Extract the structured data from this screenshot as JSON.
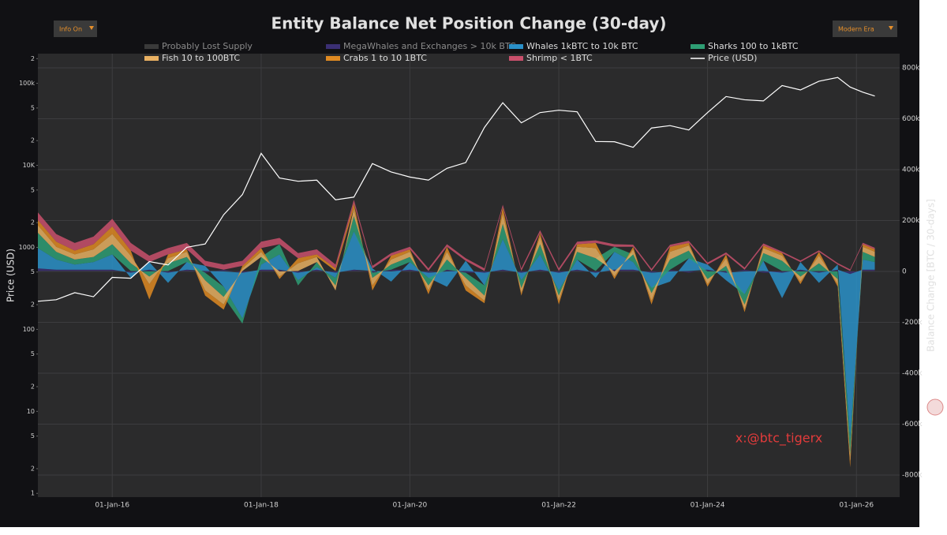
{
  "controls": {
    "info": "Info On",
    "era": "Modern Era"
  },
  "watermark": "x:@btc_tigerx",
  "chart_data": {
    "type": "area",
    "title": "Entity Balance Net Position Change (30-day)",
    "y_label": "Price (USD)",
    "y2_label": "Balance Change [BTC / 30-days]",
    "ylog": true,
    "grid": true,
    "x": [
      "2015-01-01",
      "2015-04-01",
      "2015-07-01",
      "2015-10-01",
      "2016-01-01",
      "2016-04-01",
      "2016-07-01",
      "2016-10-01",
      "2017-01-01",
      "2017-04-01",
      "2017-07-01",
      "2017-10-01",
      "2018-01-01",
      "2018-04-01",
      "2018-07-01",
      "2018-10-01",
      "2019-01-01",
      "2019-04-01",
      "2019-07-01",
      "2019-10-01",
      "2020-01-01",
      "2020-04-01",
      "2020-07-01",
      "2020-10-01",
      "2021-01-01",
      "2021-04-01",
      "2021-07-01",
      "2021-10-01",
      "2022-01-01",
      "2022-04-01",
      "2022-07-01",
      "2022-10-01",
      "2023-01-01",
      "2023-04-01",
      "2023-07-01",
      "2023-10-01",
      "2024-01-01",
      "2024-04-01",
      "2024-07-01",
      "2024-10-01",
      "2025-01-01",
      "2025-04-01",
      "2025-07-01",
      "2025-10-01",
      "2025-12-01",
      "2026-02-01",
      "2026-04-01"
    ],
    "xlim": [
      "2015-01-01",
      "2026-08-01"
    ],
    "xticks": [
      {
        "value": "2016-01-01",
        "label": "01-Jan-16"
      },
      {
        "value": "2018-01-01",
        "label": "01-Jan-18"
      },
      {
        "value": "2020-01-01",
        "label": "01-Jan-20"
      },
      {
        "value": "2022-01-01",
        "label": "01-Jan-22"
      },
      {
        "value": "2024-01-01",
        "label": "01-Jan-24"
      },
      {
        "value": "2026-01-01",
        "label": "01-Jan-26"
      }
    ],
    "ylim": [
      0.9,
      230000
    ],
    "yticks": [
      1,
      2,
      5,
      10,
      {
        "value": 20,
        "label": "2"
      },
      {
        "value": 50,
        "label": "5"
      },
      100,
      {
        "value": 200,
        "label": "2"
      },
      {
        "value": 500,
        "label": "5"
      },
      1000,
      {
        "value": 2000,
        "label": "2"
      },
      {
        "value": 5000,
        "label": "5"
      },
      {
        "value": 10000,
        "label": "10K"
      },
      {
        "value": 20000,
        "label": "2"
      },
      {
        "value": 50000,
        "label": "5"
      },
      {
        "value": 100000,
        "label": "100k"
      },
      {
        "value": 200000,
        "label": "2"
      }
    ],
    "y2lim": [
      -887000,
      856000
    ],
    "y2ticks": [
      {
        "value": -800000,
        "label": "-800k"
      },
      {
        "value": -600000,
        "label": "-600k"
      },
      {
        "value": -400000,
        "label": "-400k"
      },
      {
        "value": -200000,
        "label": "-200k"
      },
      0,
      {
        "value": 200000,
        "label": "200k"
      },
      {
        "value": 400000,
        "label": "400k"
      },
      {
        "value": 600000,
        "label": "600k"
      },
      {
        "value": 800000,
        "label": "800k"
      }
    ],
    "series": [
      {
        "name": "Probably Lost Supply",
        "color": "#3a3a3a",
        "axis": "y2",
        "values": [
          2000,
          2000,
          2000,
          2000,
          2000,
          2000,
          2000,
          2000,
          2000,
          2000,
          2000,
          2000,
          2000,
          2000,
          2000,
          2000,
          2000,
          2000,
          2000,
          2000,
          2000,
          2000,
          2000,
          2000,
          2000,
          2000,
          2000,
          2000,
          2000,
          2000,
          2000,
          2000,
          2000,
          2000,
          2000,
          2000,
          2000,
          2000,
          2000,
          2000,
          2000,
          2000,
          2000,
          2000,
          2000,
          2000,
          2000
        ]
      },
      {
        "name": "MegaWhales and Exchanges > 10k BTC",
        "color": "#3b2f74",
        "axis": "y2",
        "values": [
          10000,
          5000,
          5000,
          5000,
          5000,
          -5000,
          5000,
          -5000,
          5000,
          -5000,
          5000,
          -5000,
          5000,
          5000,
          -5000,
          5000,
          -5000,
          5000,
          -5000,
          5000,
          5000,
          -5000,
          5000,
          -5000,
          -5000,
          5000,
          -5000,
          5000,
          -5000,
          5000,
          -5000,
          5000,
          5000,
          -5000,
          5000,
          -5000,
          5000,
          -5000,
          5000,
          -5000,
          -5000,
          5000,
          -5000,
          5000,
          -10000,
          5000,
          5000
        ]
      },
      {
        "name": "Whales 1kBTC to 10k BTC",
        "color": "#2a90c8",
        "axis": "y2",
        "values": [
          80000,
          40000,
          20000,
          30000,
          60000,
          -20000,
          30000,
          -40000,
          30000,
          20000,
          -60000,
          -180000,
          20000,
          60000,
          -30000,
          10000,
          -20000,
          150000,
          10000,
          -40000,
          30000,
          -20000,
          -60000,
          40000,
          -50000,
          120000,
          -30000,
          60000,
          -70000,
          40000,
          -20000,
          70000,
          30000,
          -60000,
          -40000,
          50000,
          20000,
          -30000,
          -90000,
          40000,
          -100000,
          30000,
          -40000,
          20000,
          -650000,
          40000,
          30000
        ]
      },
      {
        "name": "Sharks 100 to 1kBTC",
        "color": "#2e9e74",
        "axis": "y2",
        "values": [
          60000,
          30000,
          20000,
          20000,
          40000,
          30000,
          -20000,
          30000,
          20000,
          -30000,
          -40000,
          -20000,
          30000,
          40000,
          -20000,
          20000,
          -30000,
          60000,
          -20000,
          20000,
          20000,
          -30000,
          40000,
          -20000,
          -40000,
          60000,
          -30000,
          40000,
          -20000,
          30000,
          50000,
          20000,
          30000,
          -20000,
          40000,
          30000,
          -30000,
          20000,
          -40000,
          30000,
          40000,
          -20000,
          30000,
          -30000,
          -60000,
          30000,
          20000
        ]
      },
      {
        "name": "Fish 10 to 100BTC",
        "color": "#e8b062",
        "axis": "y2",
        "values": [
          30000,
          20000,
          20000,
          30000,
          40000,
          30000,
          -30000,
          20000,
          20000,
          -40000,
          -30000,
          10000,
          20000,
          -20000,
          30000,
          20000,
          -20000,
          30000,
          -30000,
          20000,
          20000,
          -20000,
          30000,
          -30000,
          -20000,
          40000,
          -20000,
          30000,
          -20000,
          20000,
          40000,
          -20000,
          20000,
          -30000,
          30000,
          20000,
          -20000,
          30000,
          -20000,
          20000,
          20000,
          -20000,
          30000,
          -20000,
          -30000,
          20000,
          20000
        ]
      },
      {
        "name": "Crabs 1 to 10 1BTC",
        "color": "#df8a22",
        "axis": "y2",
        "values": [
          20000,
          20000,
          15000,
          20000,
          30000,
          20000,
          -60000,
          15000,
          10000,
          -20000,
          -20000,
          10000,
          15000,
          -10000,
          20000,
          10000,
          10000,
          20000,
          -20000,
          15000,
          10000,
          -15000,
          20000,
          -20000,
          -10000,
          25000,
          -10000,
          15000,
          -15000,
          10000,
          20000,
          -10000,
          10000,
          -15000,
          20000,
          10000,
          -10000,
          15000,
          -10000,
          10000,
          10000,
          -10000,
          15000,
          -10000,
          -20000,
          10000,
          10000
        ]
      },
      {
        "name": "Shrimp < 1BTC",
        "color": "#c9506c",
        "axis": "y2",
        "values": [
          30000,
          30000,
          30000,
          30000,
          30000,
          30000,
          25000,
          25000,
          25000,
          20000,
          20000,
          20000,
          25000,
          25000,
          20000,
          20000,
          15000,
          15000,
          10000,
          10000,
          10000,
          10000,
          10000,
          10000,
          10000,
          10000,
          10000,
          10000,
          10000,
          10000,
          10000,
          10000,
          8000,
          8000,
          8000,
          8000,
          8000,
          8000,
          8000,
          8000,
          6000,
          6000,
          6000,
          6000,
          6000,
          6000,
          6000
        ]
      },
      {
        "name": "Price (USD)",
        "color": "#ffffff",
        "axis": "y",
        "values": [
          220,
          230,
          280,
          250,
          430,
          420,
          670,
          610,
          1000,
          1100,
          2500,
          4400,
          14000,
          7000,
          6400,
          6600,
          3800,
          4100,
          10500,
          8300,
          7200,
          6600,
          9200,
          10800,
          29000,
          58000,
          33000,
          44000,
          47000,
          45000,
          19500,
          19400,
          16600,
          28500,
          30500,
          27000,
          44000,
          69000,
          63000,
          61000,
          94000,
          83000,
          106000,
          118000,
          90000,
          78000,
          70000
        ]
      }
    ]
  }
}
